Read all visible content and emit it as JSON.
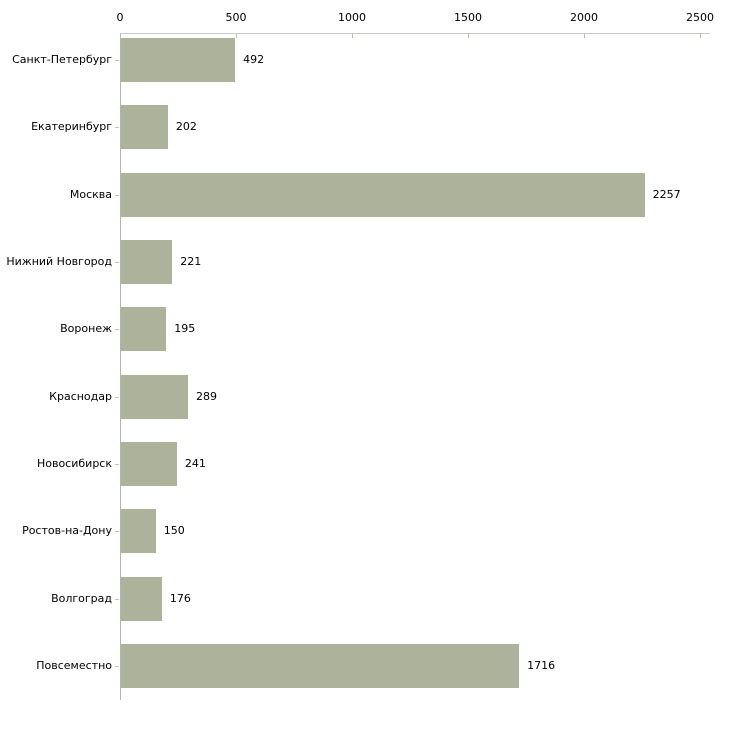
{
  "chart_data": {
    "type": "bar",
    "orientation": "horizontal",
    "title": "",
    "xlabel": "",
    "ylabel": "",
    "categories": [
      "Санкт-Петербург",
      "Екатеринбург",
      "Москва",
      "Нижний Новгород",
      "Воронеж",
      "Краснодар",
      "Новосибирск",
      "Ростов-на-Дону",
      "Волгоград",
      "Повсеместно"
    ],
    "values": [
      492,
      202,
      2257,
      221,
      195,
      289,
      241,
      150,
      176,
      1716
    ],
    "data_labels": [
      "492",
      "202",
      "2257",
      "221",
      "195",
      "289",
      "241",
      "150",
      "176",
      "1716"
    ],
    "xlim": [
      0,
      2500
    ],
    "x_ticks": [
      0,
      500,
      1000,
      1500,
      2000,
      2500
    ],
    "x_tick_labels": [
      "0",
      "500",
      "1000",
      "1500",
      "2000",
      "2500"
    ],
    "grid": false,
    "legend": false,
    "axis_position": "top",
    "colors": {
      "bar_fill": "#adb39a",
      "x_axis_line": "#c9c9c9",
      "y_axis_line": "#b3b3b3",
      "tick_mark": "#c2c2a8",
      "text": "#000000",
      "background": "#ffffff"
    }
  }
}
